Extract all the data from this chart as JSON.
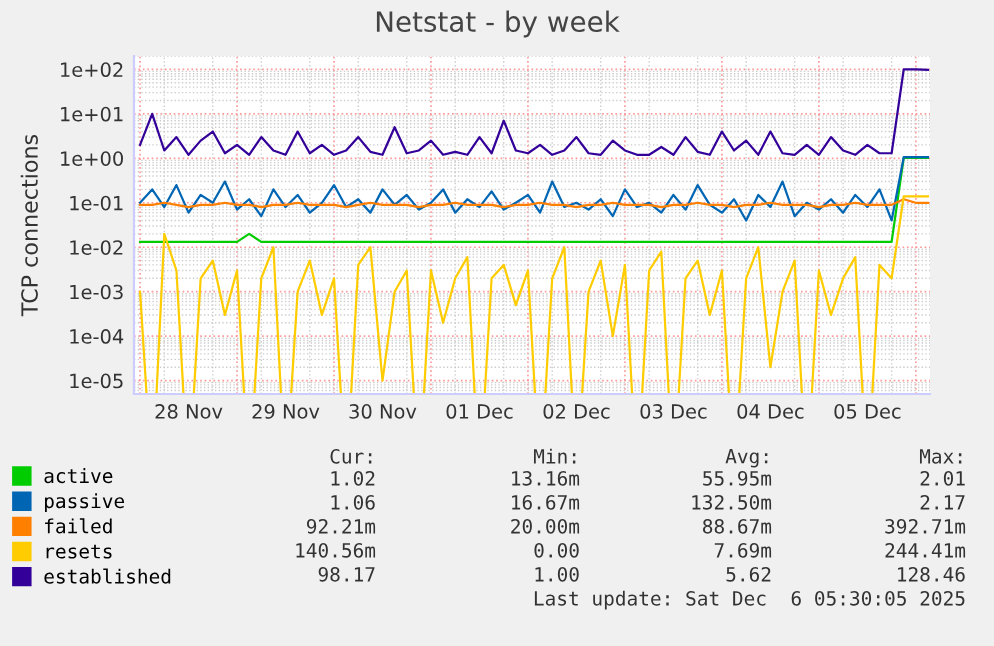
{
  "chart_data": {
    "type": "line",
    "title": "Netstat - by week",
    "ylabel": "TCP connections",
    "x": [
      "2025-11-28T00:00",
      "2025-11-28T03:00",
      "2025-11-28T06:00",
      "2025-11-28T09:00",
      "2025-11-28T12:00",
      "2025-11-28T15:00",
      "2025-11-28T18:00",
      "2025-11-28T21:00",
      "2025-11-29T00:00",
      "2025-11-29T03:00",
      "2025-11-29T06:00",
      "2025-11-29T09:00",
      "2025-11-29T12:00",
      "2025-11-29T15:00",
      "2025-11-29T18:00",
      "2025-11-29T21:00",
      "2025-11-30T00:00",
      "2025-11-30T03:00",
      "2025-11-30T06:00",
      "2025-11-30T09:00",
      "2025-11-30T12:00",
      "2025-11-30T15:00",
      "2025-11-30T18:00",
      "2025-11-30T21:00",
      "2025-12-01T00:00",
      "2025-12-01T03:00",
      "2025-12-01T06:00",
      "2025-12-01T09:00",
      "2025-12-01T12:00",
      "2025-12-01T15:00",
      "2025-12-01T18:00",
      "2025-12-01T21:00",
      "2025-12-02T00:00",
      "2025-12-02T03:00",
      "2025-12-02T06:00",
      "2025-12-02T09:00",
      "2025-12-02T12:00",
      "2025-12-02T15:00",
      "2025-12-02T18:00",
      "2025-12-02T21:00",
      "2025-12-03T00:00",
      "2025-12-03T03:00",
      "2025-12-03T06:00",
      "2025-12-03T09:00",
      "2025-12-03T12:00",
      "2025-12-03T15:00",
      "2025-12-03T18:00",
      "2025-12-03T21:00",
      "2025-12-04T00:00",
      "2025-12-04T03:00",
      "2025-12-04T06:00",
      "2025-12-04T09:00",
      "2025-12-04T12:00",
      "2025-12-04T15:00",
      "2025-12-04T18:00",
      "2025-12-04T21:00",
      "2025-12-05T00:00",
      "2025-12-05T03:00",
      "2025-12-05T06:00",
      "2025-12-05T09:00",
      "2025-12-05T12:00",
      "2025-12-05T15:00",
      "2025-12-05T18:00",
      "2025-12-05T21:00",
      "2025-12-06T00:00",
      "2025-12-06T03:00"
    ],
    "xlim": [
      "2025-11-27T22:30",
      "2025-12-06T03:30"
    ],
    "xticks": [
      {
        "value": "2025-11-28T00:00",
        "label": null
      },
      {
        "value": "2025-11-28T12:00",
        "label": "28 Nov"
      },
      {
        "value": "2025-11-29T00:00",
        "label": null
      },
      {
        "value": "2025-11-29T12:00",
        "label": "29 Nov"
      },
      {
        "value": "2025-11-30T00:00",
        "label": null
      },
      {
        "value": "2025-11-30T12:00",
        "label": "30 Nov"
      },
      {
        "value": "2025-12-01T00:00",
        "label": null
      },
      {
        "value": "2025-12-01T12:00",
        "label": "01 Dec"
      },
      {
        "value": "2025-12-02T00:00",
        "label": null
      },
      {
        "value": "2025-12-02T12:00",
        "label": "02 Dec"
      },
      {
        "value": "2025-12-03T00:00",
        "label": null
      },
      {
        "value": "2025-12-03T12:00",
        "label": "03 Dec"
      },
      {
        "value": "2025-12-04T00:00",
        "label": null
      },
      {
        "value": "2025-12-04T12:00",
        "label": "04 Dec"
      },
      {
        "value": "2025-12-05T00:00",
        "label": null
      },
      {
        "value": "2025-12-05T12:00",
        "label": "05 Dec"
      },
      {
        "value": "2025-12-06T00:00",
        "label": null
      }
    ],
    "log": "y",
    "ylim": [
      5e-06,
      200
    ],
    "yticks": [
      {
        "value": 1e-05,
        "label": "1e-05"
      },
      {
        "value": 0.0001,
        "label": "1e-04"
      },
      {
        "value": 0.001,
        "label": "1e-03"
      },
      {
        "value": 0.01,
        "label": "1e-02"
      },
      {
        "value": 0.1,
        "label": "1e-01"
      },
      {
        "value": 1,
        "label": "1e+00"
      },
      {
        "value": 10,
        "label": "1e+01"
      },
      {
        "value": 100,
        "label": "1e+02"
      }
    ],
    "grid": true,
    "legend": "bottom left",
    "series": [
      {
        "name": "active",
        "color": "#00cc00",
        "values": [
          0.0132,
          0.0132,
          0.0132,
          0.0132,
          0.0132,
          0.0132,
          0.0132,
          0.0132,
          0.0132,
          0.02,
          0.0132,
          0.0132,
          0.0132,
          0.0132,
          0.0132,
          0.0132,
          0.0132,
          0.0132,
          0.0132,
          0.0132,
          0.0132,
          0.0132,
          0.0132,
          0.0132,
          0.0132,
          0.0132,
          0.0132,
          0.0132,
          0.0132,
          0.0132,
          0.0132,
          0.0132,
          0.0132,
          0.0132,
          0.0132,
          0.0132,
          0.0132,
          0.0132,
          0.0132,
          0.0132,
          0.0132,
          0.0132,
          0.0132,
          0.0132,
          0.0132,
          0.0132,
          0.0132,
          0.0132,
          0.0132,
          0.0132,
          0.0132,
          0.0132,
          0.0132,
          0.0132,
          0.0132,
          0.0132,
          0.0132,
          0.0132,
          0.0132,
          0.0132,
          0.0132,
          0.0132,
          0.0132,
          1.02,
          1.02,
          1.02
        ]
      },
      {
        "name": "passive",
        "color": "#0066b3",
        "values": [
          0.1,
          0.2,
          0.08,
          0.25,
          0.06,
          0.15,
          0.1,
          0.3,
          0.07,
          0.12,
          0.05,
          0.2,
          0.08,
          0.15,
          0.06,
          0.1,
          0.25,
          0.08,
          0.12,
          0.06,
          0.2,
          0.09,
          0.15,
          0.07,
          0.1,
          0.2,
          0.06,
          0.12,
          0.08,
          0.18,
          0.07,
          0.1,
          0.15,
          0.06,
          0.3,
          0.08,
          0.1,
          0.07,
          0.12,
          0.05,
          0.2,
          0.08,
          0.1,
          0.06,
          0.15,
          0.07,
          0.25,
          0.09,
          0.06,
          0.12,
          0.04,
          0.15,
          0.08,
          0.3,
          0.05,
          0.1,
          0.07,
          0.12,
          0.06,
          0.15,
          0.08,
          0.2,
          0.04,
          1.06,
          1.06,
          1.06
        ]
      },
      {
        "name": "failed",
        "color": "#ff8000",
        "values": [
          0.09,
          0.09,
          0.1,
          0.09,
          0.08,
          0.09,
          0.09,
          0.1,
          0.09,
          0.09,
          0.08,
          0.09,
          0.09,
          0.1,
          0.09,
          0.09,
          0.09,
          0.08,
          0.09,
          0.1,
          0.09,
          0.09,
          0.09,
          0.08,
          0.09,
          0.09,
          0.1,
          0.09,
          0.09,
          0.09,
          0.08,
          0.09,
          0.09,
          0.1,
          0.09,
          0.09,
          0.08,
          0.09,
          0.09,
          0.1,
          0.09,
          0.09,
          0.09,
          0.08,
          0.09,
          0.09,
          0.1,
          0.09,
          0.09,
          0.08,
          0.09,
          0.09,
          0.1,
          0.09,
          0.09,
          0.09,
          0.08,
          0.09,
          0.09,
          0.1,
          0.09,
          0.09,
          0.09,
          0.12,
          0.1,
          0.1
        ]
      },
      {
        "name": "resets",
        "color": "#ffcc00",
        "values": [
          0.001,
          null,
          0.02,
          0.003,
          null,
          0.002,
          0.005,
          0.0003,
          0.003,
          null,
          0.002,
          0.01,
          null,
          0.001,
          0.005,
          0.0003,
          0.002,
          null,
          0.004,
          0.01,
          1e-05,
          0.001,
          0.003,
          null,
          0.003,
          0.0002,
          0.002,
          0.006,
          null,
          0.002,
          0.004,
          0.0005,
          0.003,
          null,
          0.002,
          0.01,
          null,
          0.001,
          0.005,
          0.0001,
          0.004,
          null,
          0.003,
          0.008,
          null,
          0.002,
          0.005,
          0.0003,
          0.003,
          null,
          0.002,
          0.01,
          2e-05,
          0.001,
          0.005,
          null,
          0.003,
          0.0003,
          0.002,
          0.006,
          null,
          0.004,
          0.002,
          0.14,
          0.14,
          0.14
        ]
      },
      {
        "name": "established",
        "color": "#330099",
        "values": [
          2,
          10,
          1.5,
          3,
          1.2,
          2.5,
          4,
          1.3,
          2,
          1.2,
          3,
          1.5,
          1.2,
          4,
          1.3,
          2,
          1.2,
          1.5,
          3,
          1.4,
          1.2,
          5,
          1.3,
          1.5,
          2.5,
          1.2,
          1.4,
          1.2,
          3,
          1.3,
          7,
          1.5,
          1.3,
          2,
          1.2,
          1.5,
          3,
          1.3,
          1.2,
          2.5,
          1.5,
          1.2,
          1.2,
          1.8,
          1.2,
          3,
          1.4,
          1.2,
          4,
          1.5,
          2.5,
          1.2,
          4,
          1.3,
          1.2,
          2,
          1.2,
          3,
          1.5,
          1.2,
          2,
          1.3,
          1.3,
          100,
          100,
          98
        ]
      }
    ],
    "annotations": [
      "Cur:",
      "Min:",
      "Avg:",
      "Max:",
      "1.02",
      "13.16m",
      "55.95m",
      "2.01",
      "1.06",
      "16.67m",
      "132.50m",
      "2.17",
      "92.21m",
      "20.00m",
      "88.67m",
      "392.71m",
      "140.56m",
      "0.00",
      "7.69m",
      "244.41m",
      "98.17",
      "1.00",
      "5.62",
      "128.46",
      "Last update: Sat Dec  6 05:30:05 2025"
    ]
  }
}
